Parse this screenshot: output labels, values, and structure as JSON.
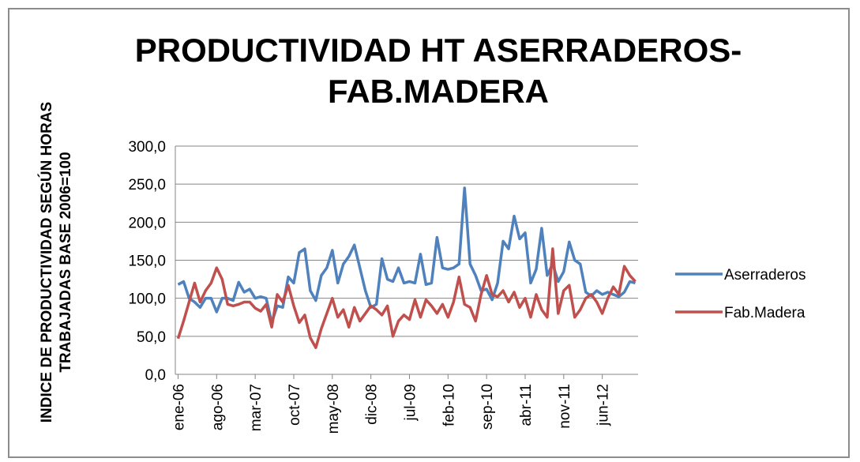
{
  "chart_data": {
    "type": "line",
    "title": "PRODUCTIVIDAD HT ASERRADEROS-FAB.MADERA",
    "y_label": "INDICE DE PRODUCTIVIDAD SEGÚN HORAS TRABAJADAS BASE 2006=100",
    "categories": [
      "ene-06",
      null,
      null,
      null,
      null,
      null,
      null,
      "ago-06",
      null,
      null,
      null,
      null,
      null,
      null,
      "mar-07",
      null,
      null,
      null,
      null,
      null,
      null,
      "oct-07",
      null,
      null,
      null,
      null,
      null,
      null,
      "may-08",
      null,
      null,
      null,
      null,
      null,
      null,
      "dic-08",
      null,
      null,
      null,
      null,
      null,
      null,
      "jul-09",
      null,
      null,
      null,
      null,
      null,
      null,
      "feb-10",
      null,
      null,
      null,
      null,
      null,
      null,
      "sep-10",
      null,
      null,
      null,
      null,
      null,
      null,
      "abr-11",
      null,
      null,
      null,
      null,
      null,
      null,
      "nov-11",
      null,
      null,
      null,
      null,
      null,
      null,
      "jun-12",
      null,
      null,
      null,
      null,
      null,
      null
    ],
    "series": [
      {
        "name": "Aserraderos",
        "color": "#4f81bd",
        "values": [
          118,
          122,
          100,
          95,
          88,
          100,
          100,
          82,
          100,
          100,
          97,
          121,
          108,
          112,
          100,
          102,
          100,
          68,
          90,
          88,
          128,
          120,
          160,
          165,
          110,
          97,
          130,
          140,
          163,
          120,
          145,
          155,
          170,
          140,
          110,
          88,
          92,
          152,
          125,
          122,
          140,
          120,
          122,
          120,
          158,
          118,
          120,
          180,
          140,
          138,
          140,
          145,
          245,
          145,
          130,
          110,
          112,
          98,
          120,
          175,
          165,
          208,
          178,
          186,
          120,
          138,
          192,
          130,
          145,
          122,
          135,
          174,
          150,
          145,
          108,
          103,
          110,
          105,
          108,
          105,
          102,
          108,
          122,
          120
        ]
      },
      {
        "name": "Fab.Madera",
        "color": "#c0504d",
        "values": [
          47,
          70,
          95,
          120,
          95,
          110,
          120,
          140,
          125,
          92,
          90,
          92,
          95,
          95,
          87,
          83,
          92,
          62,
          105,
          95,
          117,
          90,
          68,
          78,
          48,
          35,
          60,
          80,
          100,
          75,
          85,
          62,
          88,
          70,
          80,
          90,
          85,
          78,
          90,
          50,
          70,
          78,
          72,
          98,
          75,
          98,
          90,
          80,
          92,
          75,
          95,
          128,
          92,
          88,
          70,
          105,
          130,
          105,
          102,
          110,
          95,
          108,
          88,
          100,
          75,
          105,
          85,
          75,
          165,
          80,
          110,
          117,
          75,
          85,
          100,
          105,
          95,
          80,
          100,
          115,
          105,
          142,
          130,
          122
        ]
      }
    ],
    "ylim": [
      0,
      300
    ],
    "yticks": [
      {
        "value": 0,
        "label": "0,0"
      },
      {
        "value": 50,
        "label": "50,0"
      },
      {
        "value": 100,
        "label": "100,0"
      },
      {
        "value": 150,
        "label": "150,0"
      },
      {
        "value": 200,
        "label": "200,0"
      },
      {
        "value": 250,
        "label": "250,0"
      },
      {
        "value": 300,
        "label": "300,0"
      }
    ],
    "grid": true,
    "legend": "right"
  }
}
